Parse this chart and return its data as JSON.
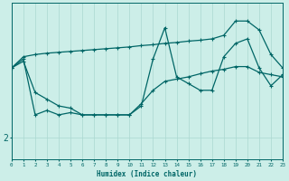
{
  "xlabel": "Humidex (Indice chaleur)",
  "bg_color": "#cceee8",
  "line_color": "#006666",
  "grid_color": "#aad8d0",
  "xmin": 0,
  "xmax": 23,
  "ymin": 1.5,
  "ymax": 5.0,
  "ytick_val": 2.0,
  "ytick_label": "2",
  "line1_x": [
    0,
    1,
    2,
    3,
    4,
    5,
    6,
    7,
    8,
    9,
    10,
    11,
    12,
    13,
    14,
    15,
    16,
    17,
    18,
    19,
    20,
    21,
    22,
    23
  ],
  "line1_y": [
    3.55,
    3.8,
    3.85,
    3.88,
    3.9,
    3.92,
    3.94,
    3.96,
    3.98,
    4.0,
    4.02,
    4.05,
    4.07,
    4.1,
    4.12,
    4.15,
    4.17,
    4.2,
    4.28,
    4.6,
    4.6,
    4.4,
    3.85,
    3.55
  ],
  "line2_x": [
    0,
    1,
    2,
    3,
    4,
    5,
    6,
    7,
    8,
    9,
    10,
    11,
    12,
    13,
    14,
    15,
    16,
    17,
    18,
    19,
    20,
    21,
    22,
    23
  ],
  "line2_y": [
    3.55,
    3.7,
    3.0,
    2.85,
    2.7,
    2.65,
    2.5,
    2.5,
    2.5,
    2.5,
    2.5,
    2.75,
    3.05,
    3.25,
    3.3,
    3.35,
    3.42,
    3.48,
    3.52,
    3.58,
    3.58,
    3.45,
    3.4,
    3.35
  ],
  "line3_x": [
    0,
    1,
    2,
    3,
    4,
    5,
    6,
    7,
    8,
    9,
    10,
    11,
    12,
    13,
    14,
    15,
    16,
    17,
    18,
    19,
    20,
    21,
    22,
    23
  ],
  "line3_y": [
    3.55,
    3.75,
    2.5,
    2.6,
    2.5,
    2.55,
    2.5,
    2.5,
    2.5,
    2.5,
    2.5,
    2.7,
    3.75,
    4.45,
    3.35,
    3.2,
    3.05,
    3.05,
    3.8,
    4.1,
    4.2,
    3.55,
    3.15,
    3.4
  ],
  "marker_size": 2.5,
  "line_width": 0.9
}
